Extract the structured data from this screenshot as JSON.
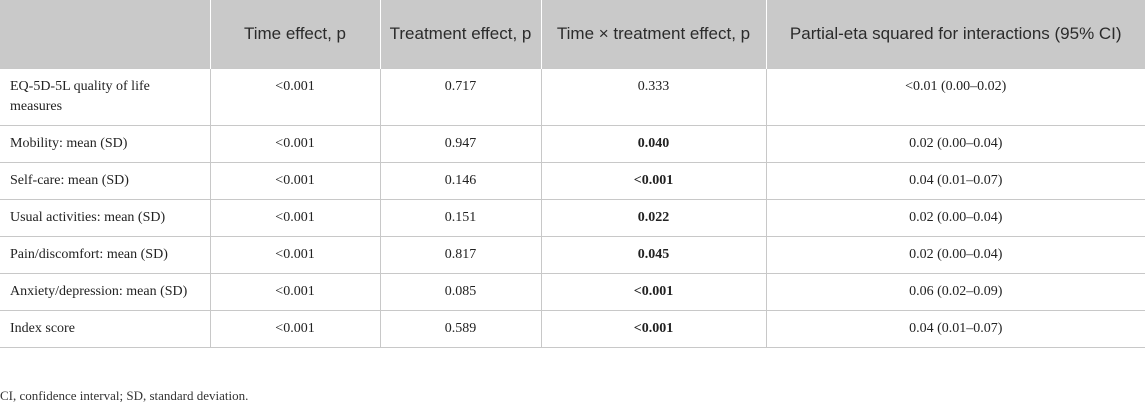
{
  "table": {
    "header": [
      "",
      "Time effect, p",
      "Treatment effect, p",
      "Time × treatment effect, p",
      "Partial-eta squared for interactions (95% CI)"
    ],
    "rows": [
      [
        "EQ-5D-5L quality of life measures",
        "<0.001",
        "0.717",
        "0.333",
        "<0.01 (0.00–0.02)"
      ],
      [
        "Mobility: mean (SD)",
        "<0.001",
        "0.947",
        {
          "text": "0.040",
          "bold": true
        },
        "0.02 (0.00–0.04)"
      ],
      [
        "Self-care: mean (SD)",
        "<0.001",
        "0.146",
        {
          "text": "<0.001",
          "bold": true
        },
        "0.04 (0.01–0.07)"
      ],
      [
        "Usual activities: mean (SD)",
        "<0.001",
        "0.151",
        {
          "text": "0.022",
          "bold": true
        },
        "0.02 (0.00–0.04)"
      ],
      [
        "Pain/discomfort: mean (SD)",
        "<0.001",
        "0.817",
        {
          "text": "0.045",
          "bold": true
        },
        "0.02 (0.00–0.04)"
      ],
      [
        "Anxiety/depression: mean (SD)",
        "<0.001",
        "0.085",
        {
          "text": "<0.001",
          "bold": true
        },
        "0.06 (0.02–0.09)"
      ],
      [
        "Index score",
        "<0.001",
        "0.589",
        {
          "text": "<0.001",
          "bold": true
        },
        "0.04 (0.01–0.07)"
      ]
    ],
    "footnote": "CI, confidence interval; SD, standard deviation."
  }
}
